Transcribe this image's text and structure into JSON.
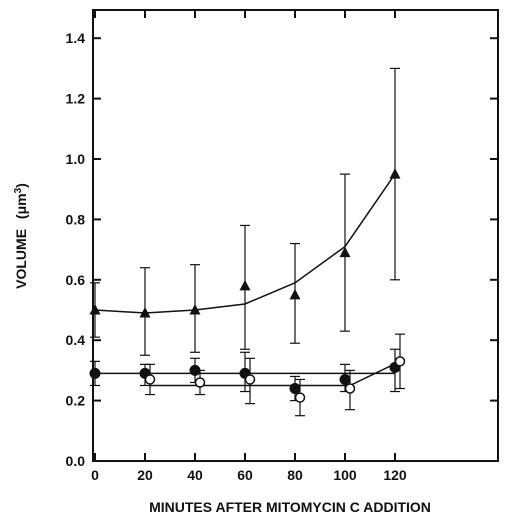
{
  "chart_data": {
    "type": "line",
    "xlabel": "MINUTES AFTER MITOMYCIN C ADDITION",
    "ylabel": "VOLUME",
    "ylabel_unit": "(μm",
    "ylabel_unit_sup": "3",
    "ylabel_close": ")",
    "xlim": [
      0,
      130
    ],
    "ylim": [
      0,
      1.5
    ],
    "xticks": [
      0,
      20,
      40,
      60,
      80,
      100,
      120
    ],
    "yticks": [
      0.0,
      0.2,
      0.4,
      0.6,
      0.8,
      1.0,
      1.2,
      1.4
    ],
    "ytick_labels": [
      "0.0",
      "0.2",
      "0.4",
      "0.6",
      "0.8",
      "1.0",
      "1.2",
      "1.4"
    ],
    "grid": false,
    "series": [
      {
        "marker": "triangle",
        "x": [
          0,
          20,
          40,
          60,
          80,
          100,
          120
        ],
        "y": [
          0.5,
          0.49,
          0.5,
          0.58,
          0.55,
          0.69,
          0.95
        ],
        "err_low": [
          0.41,
          0.35,
          0.36,
          0.37,
          0.39,
          0.43,
          0.6
        ],
        "err_high": [
          0.59,
          0.64,
          0.65,
          0.78,
          0.72,
          0.95,
          1.3
        ],
        "fit_line": [
          [
            0,
            0.5
          ],
          [
            20,
            0.49
          ],
          [
            40,
            0.5
          ],
          [
            60,
            0.52
          ],
          [
            80,
            0.59
          ],
          [
            100,
            0.71
          ],
          [
            120,
            0.95
          ]
        ]
      },
      {
        "marker": "filled-circle",
        "x": [
          0,
          20,
          40,
          60,
          80,
          100,
          120
        ],
        "y": [
          0.29,
          0.29,
          0.3,
          0.29,
          0.24,
          0.27,
          0.31
        ],
        "err_low": [
          0.25,
          0.25,
          0.26,
          0.23,
          0.2,
          0.23,
          0.23
        ],
        "err_high": [
          0.33,
          0.32,
          0.34,
          0.36,
          0.28,
          0.32,
          0.37
        ],
        "fit_line": [
          [
            0,
            0.29
          ],
          [
            120,
            0.29
          ]
        ]
      },
      {
        "marker": "open-circle",
        "x": [
          22,
          42,
          62,
          82,
          102,
          122
        ],
        "y": [
          0.27,
          0.26,
          0.27,
          0.21,
          0.24,
          0.33
        ],
        "err_low": [
          0.22,
          0.22,
          0.19,
          0.15,
          0.17,
          0.24
        ],
        "err_high": [
          0.32,
          0.3,
          0.34,
          0.27,
          0.3,
          0.42
        ],
        "fit_line": [
          [
            22,
            0.25
          ],
          [
            102,
            0.25
          ],
          [
            122,
            0.33
          ]
        ]
      }
    ]
  }
}
